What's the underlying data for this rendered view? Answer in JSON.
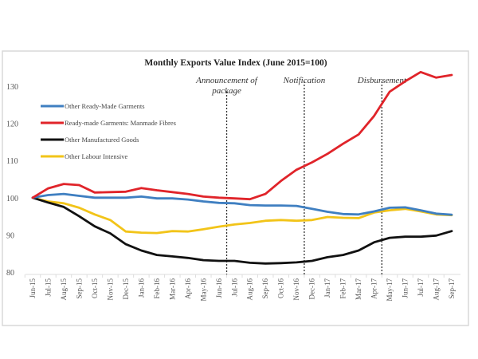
{
  "chart_data": {
    "type": "line",
    "title": "Monthly Exports Value Index (June 2015=100)",
    "xlabel": "",
    "ylabel": "",
    "ylim": [
      80,
      130
    ],
    "yticks": [
      80,
      90,
      100,
      110,
      120,
      130
    ],
    "grid": false,
    "legend_position": "upper-left",
    "categories": [
      "Jun-15",
      "Jul-15",
      "Aug-15",
      "Sep-15",
      "Oct-15",
      "Nov-15",
      "Dec-15",
      "Jan-16",
      "Feb-16",
      "Mar-16",
      "Apr-16",
      "May-16",
      "Jun-16",
      "Jul-16",
      "Aug-16",
      "Sep-16",
      "Oct-16",
      "Nov-16",
      "Dec-16",
      "Jan-17",
      "Feb-17",
      "Mar-17",
      "Apr-17",
      "May-17",
      "Jun-17",
      "Jul-17",
      "Aug-17",
      "Sep-17"
    ],
    "series": [
      {
        "name": "Other Ready-Made Garments",
        "color": "#3f7fc1",
        "values": [
          100,
          100.7,
          101,
          100.5,
          100,
          100,
          100,
          100.3,
          99.8,
          99.8,
          99.5,
          99,
          98.6,
          98.5,
          98,
          97.9,
          97.9,
          97.8,
          97,
          96.2,
          95.6,
          95.5,
          96.3,
          97.3,
          97.4,
          96.6,
          95.7,
          95.4
        ]
      },
      {
        "name": "Ready-made Garments: Manmade Fibres",
        "color": "#e0242a",
        "values": [
          100,
          102.5,
          103.7,
          103.4,
          101.4,
          101.5,
          101.6,
          102.6,
          102,
          101.5,
          101,
          100.3,
          100,
          99.8,
          99.6,
          101,
          104.5,
          107.5,
          109.5,
          111.8,
          114.5,
          117,
          122,
          128.5,
          131.3,
          133.8,
          132.3,
          133
        ]
      },
      {
        "name": "Other Manufactured Goods",
        "color": "#111111",
        "values": [
          100,
          98.7,
          97.5,
          95,
          92.3,
          90.4,
          87.5,
          85.8,
          84.6,
          84.2,
          83.8,
          83.2,
          83,
          83,
          82.5,
          82.3,
          82.4,
          82.6,
          83,
          84,
          84.6,
          85.8,
          88,
          89.2,
          89.5,
          89.5,
          89.8,
          91
        ]
      },
      {
        "name": "Other Labour Intensive",
        "color": "#f2c419",
        "values": [
          100,
          99,
          98.5,
          97.3,
          95.5,
          94,
          90.9,
          90.6,
          90.5,
          91,
          90.9,
          91.5,
          92.2,
          92.8,
          93.2,
          93.8,
          94,
          93.8,
          94,
          94.8,
          94.6,
          94.5,
          96,
          96.6,
          97,
          96.3,
          95.5,
          95.3
        ]
      }
    ],
    "annotations": [
      {
        "label_lines": [
          "Announcement of",
          "package"
        ],
        "at": "Jun-16"
      },
      {
        "label_lines": [
          "Notification"
        ],
        "at": "Nov-16"
      },
      {
        "label_lines": [
          "Disbursement"
        ],
        "at": "Apr-17"
      }
    ]
  }
}
